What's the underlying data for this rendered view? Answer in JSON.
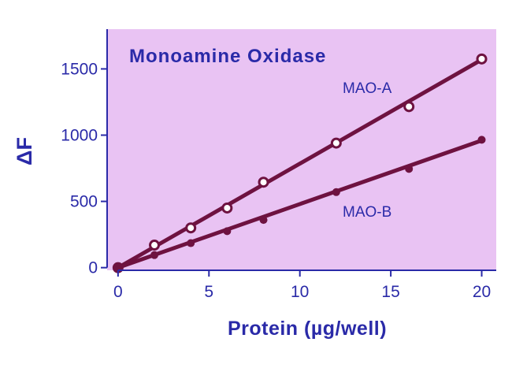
{
  "chart_data": {
    "type": "scatter",
    "title": "Monoamine Oxidase",
    "xlabel": "Protein (µg/well)",
    "ylabel": "ΔF",
    "xlim": [
      -0.6,
      20.8
    ],
    "ylim": [
      -20,
      1800
    ],
    "xticks": [
      0,
      5,
      10,
      15,
      20
    ],
    "xtick_labels": [
      "0",
      "5",
      "10",
      "15",
      "20"
    ],
    "yticks": [
      0,
      500,
      1000,
      1500
    ],
    "ytick_labels": [
      "0",
      "500",
      "1000",
      "1500"
    ],
    "grid": false,
    "legend": "none",
    "colors": {
      "plot_background": "#e9c3f3",
      "text": "#2a2aa8",
      "series": "#6e1240"
    },
    "series": [
      {
        "name": "MAO-A",
        "marker": "open-circle",
        "x": [
          0,
          2,
          4,
          6,
          8,
          12,
          16,
          20
        ],
        "y": [
          0,
          170,
          300,
          450,
          645,
          940,
          1215,
          1575
        ],
        "fit": [
          [
            0,
            0
          ],
          [
            20,
            1570
          ]
        ]
      },
      {
        "name": "MAO-B",
        "marker": "filled-circle",
        "x": [
          0,
          2,
          4,
          6,
          8,
          12,
          16,
          20
        ],
        "y": [
          0,
          95,
          185,
          275,
          360,
          570,
          745,
          965
        ],
        "fit": [
          [
            0,
            0
          ],
          [
            20,
            960
          ]
        ]
      }
    ]
  }
}
